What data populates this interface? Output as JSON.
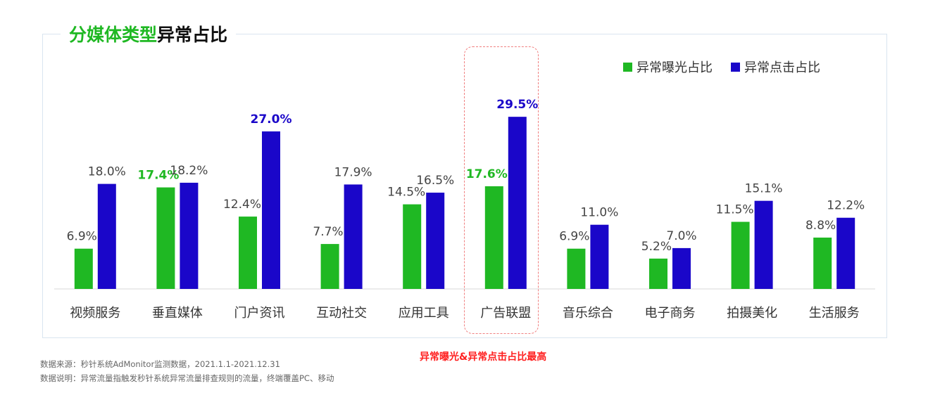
{
  "title": {
    "part1": "分媒体类型",
    "part2": "异常占比"
  },
  "legend": [
    {
      "label": "异常曝光占比",
      "color": "#1fb823"
    },
    {
      "label": "异常点击占比",
      "color": "#1a06c9"
    }
  ],
  "chart_data": {
    "type": "bar",
    "categories": [
      "视频服务",
      "垂直媒体",
      "门户资讯",
      "互动社交",
      "应用工具",
      "广告联盟",
      "音乐综合",
      "电子商务",
      "拍摄美化",
      "生活服务"
    ],
    "series": [
      {
        "name": "异常曝光占比",
        "color": "#1fb823",
        "values": [
          6.9,
          17.4,
          12.4,
          7.7,
          14.5,
          17.6,
          6.9,
          5.2,
          11.5,
          8.8
        ]
      },
      {
        "name": "异常点击占比",
        "color": "#1a06c9",
        "values": [
          18.0,
          18.2,
          27.0,
          17.9,
          16.5,
          29.5,
          11.0,
          7.0,
          15.1,
          12.2
        ]
      }
    ],
    "value_labels": {
      "异常曝光占比": [
        "6.9%",
        "17.4%",
        "12.4%",
        "7.7%",
        "14.5%",
        "17.6%",
        "6.9%",
        "5.2%",
        "11.5%",
        "8.8%"
      ],
      "异常点击占比": [
        "18.0%",
        "18.2%",
        "27.0%",
        "17.9%",
        "16.5%",
        "29.5%",
        "11.0%",
        "7.0%",
        "15.1%",
        "12.2%"
      ]
    },
    "emphasized_labels": [
      {
        "series": "异常曝光占比",
        "category": "垂直媒体",
        "color": "#1fb823"
      },
      {
        "series": "异常点击占比",
        "category": "门户资讯",
        "color": "#1a06c9"
      },
      {
        "series": "异常曝光占比",
        "category": "广告联盟",
        "color": "#1fb823"
      },
      {
        "series": "异常点击占比",
        "category": "广告联盟",
        "color": "#1a06c9"
      }
    ],
    "highlighted_category": "广告联盟",
    "ylim": [
      0,
      30
    ],
    "grid": false,
    "legend_position": "top-right"
  },
  "highlight_note": "异常曝光&异常点击占比最高",
  "footnotes": {
    "source": "数据来源：秒针系统AdMonitor监测数据，2021.1.1-2021.12.31",
    "description": "数据说明：异常流量指触发秒针系统异常流量排查规则的流量，终端覆盖PC、移动"
  }
}
